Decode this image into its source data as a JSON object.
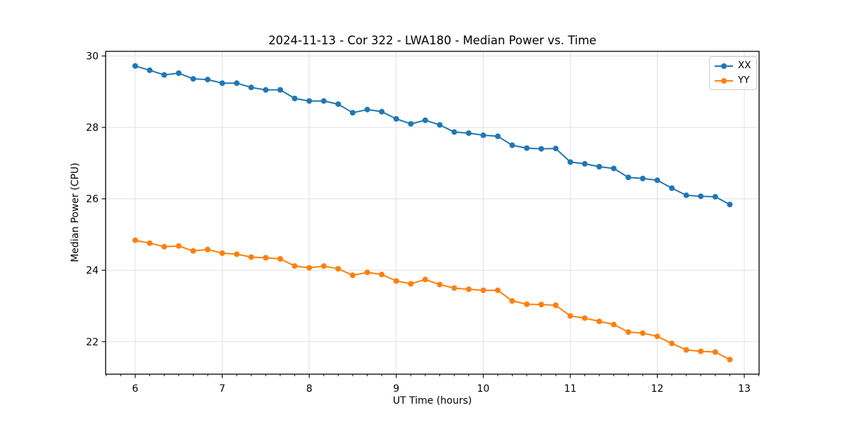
{
  "colors": {
    "background": "#ffffff",
    "axis": "#000000",
    "grid": "#e0e0e0",
    "tick_label": "#000000",
    "legend_border": "#cccccc",
    "series_xx": "#1f77b4",
    "series_yy": "#ff7f0e"
  },
  "chart_data": {
    "type": "line",
    "title": "2024-11-13 - Cor 322 - LWA180 - Median Power vs. Time",
    "xlabel": "UT Time (hours)",
    "ylabel": "Median Power (CPU)",
    "xlim": [
      5.66,
      13.17
    ],
    "ylim": [
      21.09,
      30.13
    ],
    "x_ticks": [
      6,
      7,
      8,
      9,
      10,
      11,
      12,
      13
    ],
    "x_tick_labels": [
      "6",
      "7",
      "8",
      "9",
      "10",
      "11",
      "12",
      "13"
    ],
    "y_ticks": [
      22,
      24,
      26,
      28,
      30
    ],
    "y_tick_labels": [
      "22",
      "24",
      "26",
      "28",
      "30"
    ],
    "x_minor_tick_step": 0.166667,
    "grid": true,
    "legend_position": "upper right",
    "marker": "o",
    "x": [
      6,
      6.167,
      6.333,
      6.5,
      6.667,
      6.833,
      7,
      7.167,
      7.333,
      7.5,
      7.667,
      7.833,
      8,
      8.167,
      8.333,
      8.5,
      8.667,
      8.833,
      9,
      9.167,
      9.333,
      9.5,
      9.667,
      9.833,
      10,
      10.167,
      10.333,
      10.5,
      10.667,
      10.833,
      11,
      11.167,
      11.333,
      11.5,
      11.667,
      11.833,
      12,
      12.167,
      12.333,
      12.5,
      12.667,
      12.833
    ],
    "series": [
      {
        "name": "XX",
        "color": "#1f77b4",
        "values": [
          29.72,
          29.6,
          29.47,
          29.52,
          29.36,
          29.34,
          29.24,
          29.24,
          29.12,
          29.05,
          29.05,
          28.81,
          28.74,
          28.74,
          28.65,
          28.41,
          28.5,
          28.44,
          28.24,
          28.1,
          28.2,
          28.07,
          27.87,
          27.84,
          27.78,
          27.75,
          27.5,
          27.42,
          27.4,
          27.41,
          27.03,
          26.98,
          26.9,
          26.85,
          26.6,
          26.57,
          26.52,
          26.3,
          26.1,
          26.07,
          26.06,
          25.84
        ]
      },
      {
        "name": "YY",
        "color": "#ff7f0e",
        "values": [
          24.84,
          24.76,
          24.66,
          24.68,
          24.54,
          24.58,
          24.48,
          24.45,
          24.37,
          24.35,
          24.32,
          24.12,
          24.07,
          24.12,
          24.04,
          23.86,
          23.94,
          23.88,
          23.7,
          23.62,
          23.74,
          23.6,
          23.5,
          23.47,
          23.44,
          23.44,
          23.14,
          23.05,
          23.04,
          23.02,
          22.72,
          22.66,
          22.57,
          22.48,
          22.27,
          22.24,
          22.15,
          21.95,
          21.77,
          21.73,
          21.71,
          21.5
        ]
      }
    ]
  }
}
